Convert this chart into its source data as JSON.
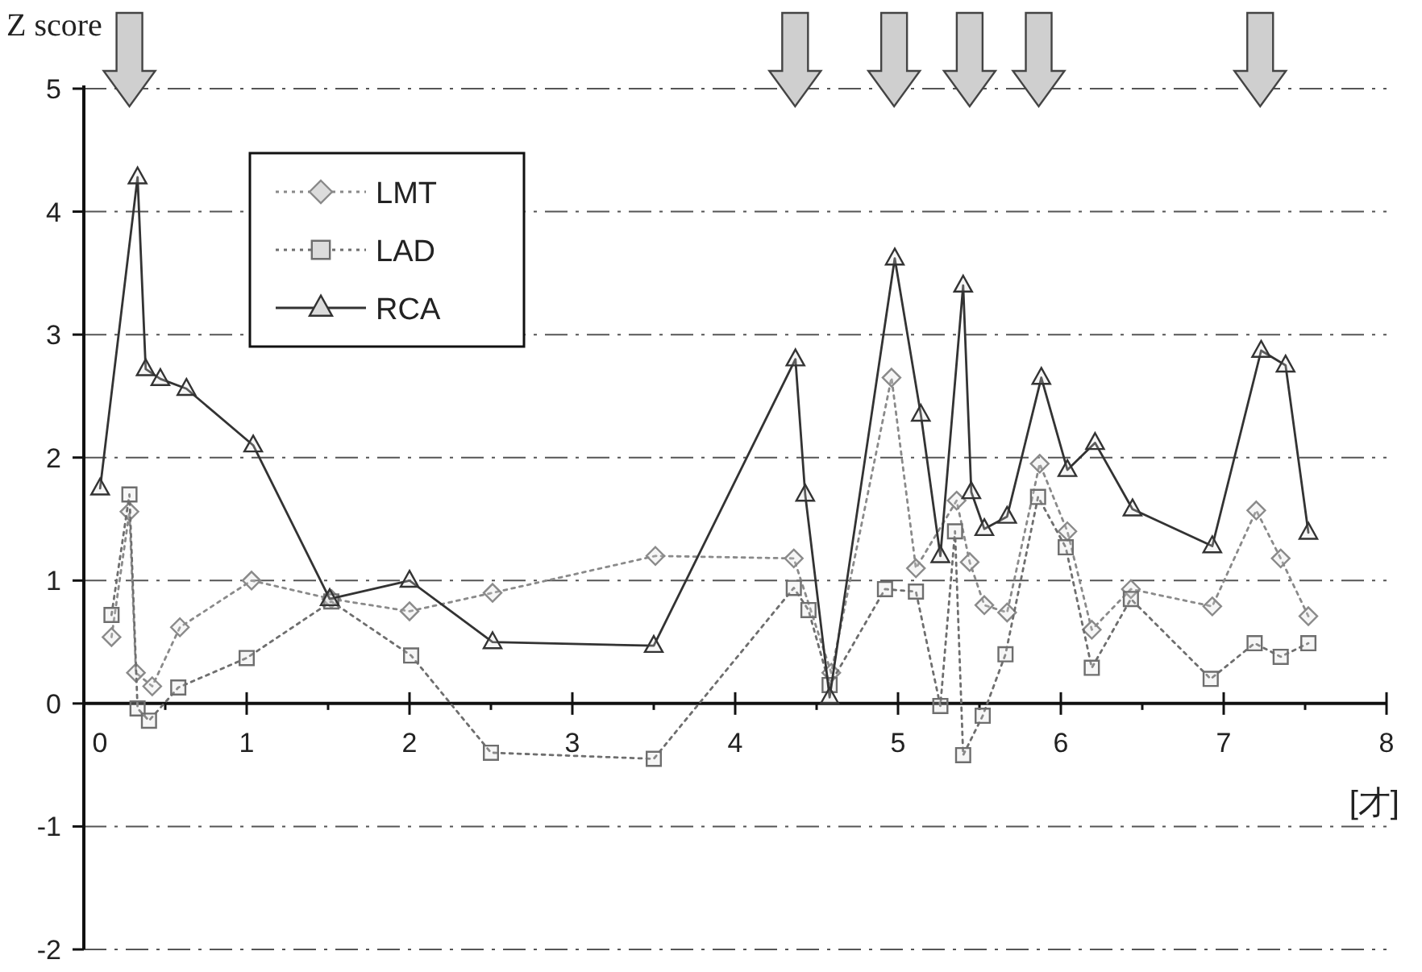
{
  "chart_data": {
    "type": "line",
    "ylabel": "Z score",
    "xlabel": "[才]",
    "xlim": [
      0,
      8
    ],
    "ylim": [
      -2,
      5
    ],
    "xticks": [
      0,
      {
        "value": 0.5,
        "label": null
      },
      1,
      {
        "value": 1.5,
        "label": null
      },
      2,
      {
        "value": 2.5,
        "label": null
      },
      3,
      {
        "value": 3.5,
        "label": null
      },
      4,
      {
        "value": 4.5,
        "label": null
      },
      5,
      {
        "value": 5.5,
        "label": null
      },
      6,
      {
        "value": 6.5,
        "label": null
      },
      7,
      {
        "value": 7.5,
        "label": null
      },
      8
    ],
    "yticks": [
      -2,
      -1,
      0,
      1,
      2,
      3,
      4,
      5
    ],
    "grid": "y",
    "legend": "top left",
    "series": [
      {
        "name": "LMT",
        "color": "#8a8a8a",
        "marker": "diamond",
        "line_style": "dotted",
        "x": [
          0.17,
          0.28,
          0.32,
          0.42,
          0.59,
          1.03,
          1.52,
          2.0,
          2.51,
          3.51,
          4.36,
          4.59,
          4.96,
          5.11,
          5.36,
          5.44,
          5.53,
          5.67,
          5.87,
          6.04,
          6.19,
          6.43,
          6.93,
          7.2,
          7.35,
          7.52
        ],
        "values": [
          0.54,
          1.56,
          0.25,
          0.14,
          0.62,
          1.0,
          0.85,
          0.75,
          0.9,
          1.2,
          1.18,
          0.25,
          2.65,
          1.1,
          1.65,
          1.15,
          0.8,
          0.74,
          1.95,
          1.4,
          0.6,
          0.93,
          0.79,
          1.57,
          1.18,
          0.71
        ]
      },
      {
        "name": "LAD",
        "color": "#6e6e6e",
        "marker": "square",
        "line_style": "dotted",
        "x": [
          0.17,
          0.28,
          0.33,
          0.4,
          0.58,
          1.0,
          1.52,
          2.01,
          2.5,
          3.5,
          4.36,
          4.45,
          4.58,
          4.92,
          5.11,
          5.26,
          5.35,
          5.4,
          5.52,
          5.66,
          5.86,
          6.03,
          6.19,
          6.43,
          6.92,
          7.19,
          7.35,
          7.52
        ],
        "values": [
          0.72,
          1.7,
          -0.04,
          -0.14,
          0.13,
          0.37,
          0.83,
          0.39,
          -0.4,
          -0.45,
          0.94,
          0.76,
          0.15,
          0.93,
          0.91,
          -0.02,
          1.4,
          -0.42,
          -0.1,
          0.4,
          1.68,
          1.27,
          0.29,
          0.85,
          0.2,
          0.49,
          0.38,
          0.49
        ]
      },
      {
        "name": "RCA",
        "color": "#333333",
        "marker": "triangle",
        "line_style": "solid",
        "x": [
          0.1,
          0.33,
          0.38,
          0.47,
          0.63,
          1.04,
          1.51,
          2.0,
          2.51,
          3.5,
          4.37,
          4.43,
          4.58,
          4.98,
          5.14,
          5.26,
          5.4,
          5.45,
          5.53,
          5.67,
          5.88,
          6.04,
          6.21,
          6.44,
          6.93,
          7.23,
          7.38,
          7.52
        ],
        "values": [
          1.75,
          4.28,
          2.72,
          2.64,
          2.56,
          2.1,
          0.85,
          1.0,
          0.5,
          0.47,
          2.8,
          1.7,
          0.05,
          3.62,
          2.35,
          1.2,
          3.4,
          1.72,
          1.42,
          1.52,
          2.65,
          1.9,
          2.12,
          1.58,
          1.28,
          2.87,
          2.75,
          1.39
        ]
      }
    ]
  }
}
